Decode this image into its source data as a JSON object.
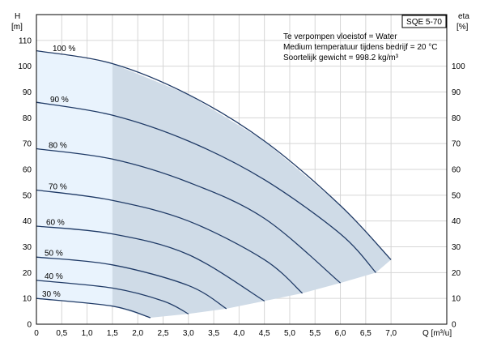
{
  "chart_data": {
    "type": "line",
    "title": "SQE 5-70",
    "info_lines": [
      "Te verpompen vloeistof = Water",
      "Medium temperatuur tijdens bedrijf = 20 °C",
      "Soortelijk gewicht = 998.2 kg/m³"
    ],
    "left_axis": {
      "label_top": "H",
      "label_unit": "[m]",
      "range": [
        0,
        120
      ],
      "ticks": [
        0,
        10,
        20,
        30,
        40,
        50,
        60,
        70,
        80,
        90,
        100,
        110
      ]
    },
    "right_axis": {
      "label_top": "eta",
      "label_unit": "[%]",
      "range": [
        0,
        120
      ],
      "ticks": [
        0,
        10,
        20,
        30,
        40,
        50,
        60,
        70,
        80,
        90,
        100
      ]
    },
    "x_axis": {
      "label": "Q [m³/u]",
      "range": [
        0,
        8.1
      ],
      "ticks": [
        0,
        0.5,
        1.0,
        1.5,
        2.0,
        2.5,
        3.0,
        3.5,
        4.0,
        4.5,
        5.0,
        5.5,
        6.0,
        6.5,
        7.0
      ],
      "tick_labels": [
        "0",
        "0,5",
        "1,0",
        "1,5",
        "2,0",
        "2,5",
        "3,0",
        "3,5",
        "4,0",
        "4,5",
        "5,0",
        "5,5",
        "6,0",
        "6,5",
        "7,0"
      ]
    },
    "grid": true,
    "colors": {
      "curve": "#1f3a66",
      "region_light": "#e9f3fd",
      "region_dark": "#cfdbe7",
      "grid": "#d6d6d6"
    },
    "series": [
      {
        "name": "100 %",
        "x": [
          0,
          1.5,
          3.0,
          4.5,
          6.0,
          7.0
        ],
        "y": [
          106,
          101,
          89,
          71,
          46,
          25
        ]
      },
      {
        "name": "90 %",
        "x": [
          0,
          1.5,
          3.0,
          4.5,
          6.0,
          6.7
        ],
        "y": [
          86,
          81,
          71,
          56,
          35,
          20
        ]
      },
      {
        "name": "80 %",
        "x": [
          0,
          1.5,
          3.0,
          4.5,
          6.0
        ],
        "y": [
          68,
          64,
          55,
          41,
          16
        ]
      },
      {
        "name": "70 %",
        "x": [
          0,
          1.5,
          3.0,
          4.5,
          5.25
        ],
        "y": [
          52,
          48,
          40,
          25,
          12
        ]
      },
      {
        "name": "60 %",
        "x": [
          0,
          1.5,
          3.0,
          4.5
        ],
        "y": [
          38,
          35,
          27,
          9
        ]
      },
      {
        "name": "50 %",
        "x": [
          0,
          1.5,
          3.0,
          3.75
        ],
        "y": [
          26,
          23,
          15,
          6
        ]
      },
      {
        "name": "40 %",
        "x": [
          0,
          1.5,
          2.5,
          3.0
        ],
        "y": [
          17,
          14,
          9,
          4
        ]
      },
      {
        "name": "30 %",
        "x": [
          0,
          1.5,
          2.25
        ],
        "y": [
          10,
          7,
          2.5
        ]
      }
    ],
    "region": {
      "boundary_x": 1.5,
      "lower_edge_x": [
        2.25,
        3.0,
        3.75,
        4.5,
        5.25,
        6.0,
        6.7,
        7.0
      ],
      "lower_edge_y": [
        2.5,
        4,
        6,
        9,
        12,
        16,
        20,
        25
      ]
    }
  }
}
